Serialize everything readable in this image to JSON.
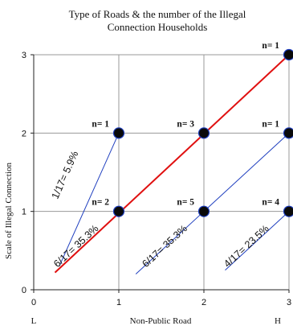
{
  "chart_data": {
    "type": "scatter",
    "title_lines": [
      "Type of Roads & the number of the Illegal",
      "Connection Households"
    ],
    "xlabel": "Non-Public Road",
    "ylabel": "Scale of Illegal Connection",
    "xlim": [
      0,
      3
    ],
    "ylim": [
      0,
      3
    ],
    "x_ticks": [
      "0",
      "1",
      "2",
      "3"
    ],
    "y_ticks": [
      "0",
      "1",
      "2",
      "3"
    ],
    "x_end_labels": [
      "L",
      "H"
    ],
    "grid": true,
    "points": [
      {
        "x": 1,
        "y": 1,
        "label": "n= 2"
      },
      {
        "x": 1,
        "y": 2,
        "label": "n= 1"
      },
      {
        "x": 2,
        "y": 1,
        "label": "n= 5"
      },
      {
        "x": 2,
        "y": 2,
        "label": "n= 3"
      },
      {
        "x": 3,
        "y": 1,
        "label": "n= 4"
      },
      {
        "x": 3,
        "y": 2,
        "label": "n= 1"
      },
      {
        "x": 3,
        "y": 3,
        "label": "n= 1"
      }
    ],
    "diagonals": [
      {
        "x0": 0.3,
        "y0": 0.3,
        "x1": 1,
        "y1": 2,
        "label": "1/17= 5.9%",
        "color": "#1f3fbf"
      },
      {
        "x0": 0.25,
        "y0": 0.22,
        "x1": 3,
        "y1": 3,
        "label": "6/17= 35.3%",
        "color": "#e01010"
      },
      {
        "x0": 1.2,
        "y0": 0.2,
        "x1": 3,
        "y1": 2,
        "label": "6/17= 35.3%",
        "color": "#1f3fbf"
      },
      {
        "x0": 2.25,
        "y0": 0.25,
        "x1": 3,
        "y1": 1,
        "label": "4/17= 23.5%",
        "color": "#1f3fbf"
      }
    ]
  }
}
